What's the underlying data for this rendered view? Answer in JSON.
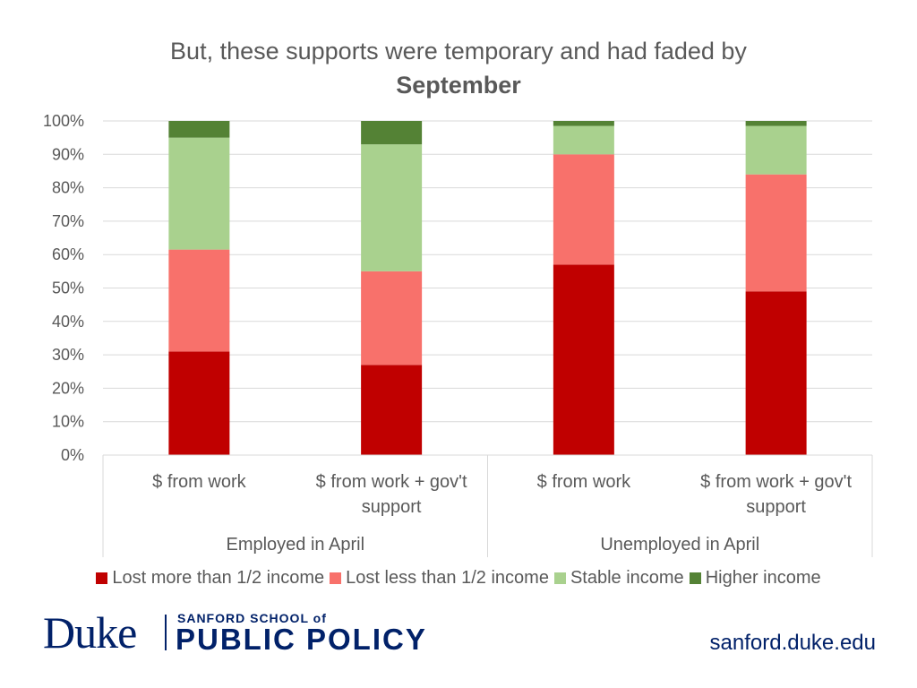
{
  "title": {
    "line1": "But, these supports were temporary and had faded by",
    "line2": "September"
  },
  "chart_data": {
    "type": "bar",
    "stacked": true,
    "percent_axis": true,
    "ylim": [
      0,
      100
    ],
    "yticks": [
      "0%",
      "10%",
      "20%",
      "30%",
      "40%",
      "50%",
      "60%",
      "70%",
      "80%",
      "90%",
      "100%"
    ],
    "categories": [
      {
        "label": [
          "$ from work"
        ],
        "group": "Employed in April"
      },
      {
        "label": [
          "$ from work + gov't",
          "support"
        ],
        "group": "Employed in April"
      },
      {
        "label": [
          "$ from work"
        ],
        "group": "Unemployed in April"
      },
      {
        "label": [
          "$ from work + gov't",
          "support"
        ],
        "group": "Unemployed in April"
      }
    ],
    "groups": [
      "Employed in April",
      "Unemployed in April"
    ],
    "series": [
      {
        "name": "Lost more than 1/2 income",
        "color": "#C00000",
        "values": [
          31,
          27,
          57,
          49
        ]
      },
      {
        "name": "Lost less than 1/2 income",
        "color": "#F8716B",
        "values": [
          30.5,
          28,
          33,
          35
        ]
      },
      {
        "name": "Stable income",
        "color": "#A9D18E",
        "values": [
          33.5,
          38,
          8.5,
          14.5
        ]
      },
      {
        "name": "Higher income",
        "color": "#548235",
        "values": [
          5,
          7,
          1.5,
          1.5
        ]
      }
    ],
    "grid": true,
    "legend": "bottom"
  },
  "footer": {
    "logo_main": "Duke",
    "logo_school_small": "SANFORD SCHOOL of",
    "logo_school_big": "PUBLIC POLICY",
    "site": "sanford.duke.edu"
  }
}
